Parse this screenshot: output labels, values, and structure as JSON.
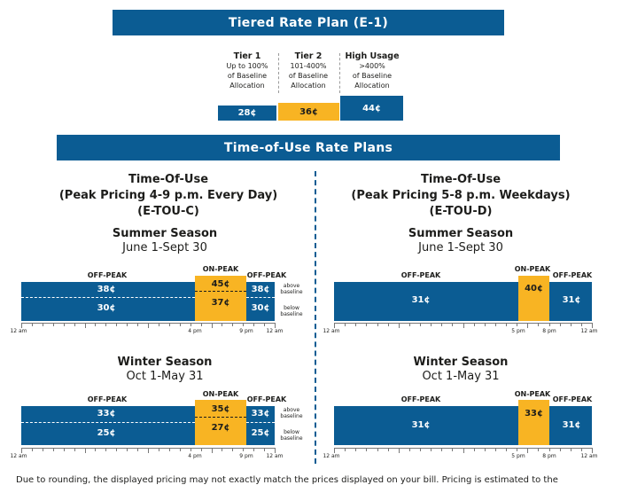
{
  "tiered": {
    "title": "Tiered Rate Plan (E-1)",
    "tiers": [
      {
        "name": "Tier 1",
        "desc": [
          "Up to 100%",
          "of Baseline",
          "Allocation"
        ],
        "price": "28¢",
        "color": "blue"
      },
      {
        "name": "Tier 2",
        "desc": [
          "101-400%",
          "of Baseline",
          "Allocation"
        ],
        "price": "36¢",
        "color": "yellow"
      },
      {
        "name": "High Usage",
        "desc": [
          ">400%",
          "of Baseline",
          "Allocation"
        ],
        "price": "44¢",
        "color": "blue"
      }
    ]
  },
  "tou": {
    "title": "Time-of-Use Rate Plans",
    "plans": [
      {
        "title": [
          "Time-Of-Use",
          "(Peak Pricing 4-9 p.m. Every Day)",
          "(E-TOU-C)"
        ],
        "summer": {
          "name": "Summer Season",
          "dates": "June 1-Sept 30",
          "off_label": "OFF-PEAK",
          "on_label": "ON-PEAK",
          "off_label2": "OFF-PEAK",
          "off_above": "38¢",
          "off_below": "30¢",
          "on_above": "45¢",
          "on_below": "37¢",
          "off2_above": "38¢",
          "off2_below": "30¢",
          "above_note": [
            "above",
            "baseline"
          ],
          "below_note": [
            "below",
            "baseline"
          ],
          "axis": [
            "12 am",
            "4 pm",
            "9 pm",
            "12 am"
          ]
        },
        "winter": {
          "name": "Winter Season",
          "dates": "Oct 1-May 31",
          "off_label": "OFF-PEAK",
          "on_label": "ON-PEAK",
          "off_label2": "OFF-PEAK",
          "off_above": "33¢",
          "off_below": "25¢",
          "on_above": "35¢",
          "on_below": "27¢",
          "off2_above": "33¢",
          "off2_below": "25¢",
          "above_note": [
            "above",
            "baseline"
          ],
          "below_note": [
            "below",
            "baseline"
          ],
          "axis": [
            "12 am",
            "4 pm",
            "9 pm",
            "12 am"
          ]
        }
      },
      {
        "title": [
          "Time-Of-Use",
          "(Peak Pricing 5-8 p.m. Weekdays)",
          "(E-TOU-D)"
        ],
        "summer": {
          "name": "Summer Season",
          "dates": "June 1-Sept 30",
          "off_label": "OFF-PEAK",
          "on_label": "ON-PEAK",
          "off_label2": "OFF-PEAK",
          "off": "31¢",
          "on": "40¢",
          "off2": "31¢",
          "axis": [
            "12 am",
            "5 pm",
            "8 pm",
            "12 am"
          ]
        },
        "winter": {
          "name": "Winter Season",
          "dates": "Oct 1-May 31",
          "off_label": "OFF-PEAK",
          "on_label": "ON-PEAK",
          "off_label2": "OFF-PEAK",
          "off": "31¢",
          "on": "33¢",
          "off2": "31¢",
          "axis": [
            "12 am",
            "5 pm",
            "8 pm",
            "12 am"
          ]
        }
      }
    ]
  },
  "footnote": "Due to rounding, the displayed pricing may not exactly match the prices displayed on your bill. Pricing is estimated to the"
}
